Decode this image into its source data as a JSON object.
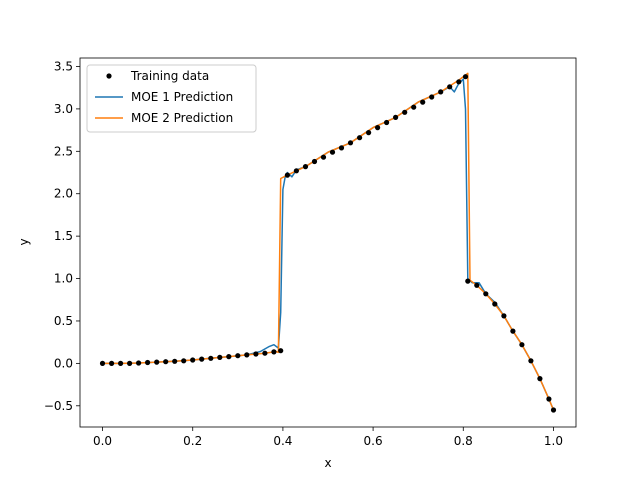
{
  "chart_data": {
    "type": "line",
    "title": "",
    "xlabel": "x",
    "ylabel": "y",
    "xlim": [
      -0.05,
      1.05
    ],
    "ylim": [
      -0.75,
      3.6
    ],
    "xticks": [
      0.0,
      0.2,
      0.4,
      0.6,
      0.8,
      1.0
    ],
    "xtick_labels": [
      "0.0",
      "0.2",
      "0.4",
      "0.6",
      "0.8",
      "1.0"
    ],
    "yticks": [
      -0.5,
      0.0,
      0.5,
      1.0,
      1.5,
      2.0,
      2.5,
      3.0,
      3.5
    ],
    "ytick_labels": [
      "−0.5",
      "0.0",
      "0.5",
      "1.0",
      "1.5",
      "2.0",
      "2.5",
      "3.0",
      "3.5"
    ],
    "grid": false,
    "legend_position": "upper-left",
    "series": [
      {
        "name": "Training data",
        "kind": "points",
        "color": "#000000",
        "x": [
          0.0,
          0.02,
          0.04,
          0.06,
          0.08,
          0.1,
          0.12,
          0.14,
          0.16,
          0.18,
          0.2,
          0.22,
          0.24,
          0.26,
          0.28,
          0.3,
          0.32,
          0.34,
          0.36,
          0.38,
          0.395,
          0.41,
          0.43,
          0.45,
          0.47,
          0.49,
          0.51,
          0.53,
          0.55,
          0.57,
          0.59,
          0.61,
          0.63,
          0.65,
          0.67,
          0.69,
          0.71,
          0.73,
          0.75,
          0.77,
          0.79,
          0.805,
          0.81,
          0.83,
          0.85,
          0.87,
          0.89,
          0.91,
          0.93,
          0.95,
          0.97,
          0.99,
          1.0
        ],
        "y": [
          0.0,
          0.0,
          0.0,
          0.0,
          0.005,
          0.01,
          0.015,
          0.02,
          0.025,
          0.03,
          0.04,
          0.05,
          0.06,
          0.07,
          0.08,
          0.09,
          0.1,
          0.11,
          0.12,
          0.135,
          0.15,
          2.22,
          2.27,
          2.32,
          2.38,
          2.43,
          2.49,
          2.54,
          2.6,
          2.66,
          2.72,
          2.78,
          2.84,
          2.9,
          2.96,
          3.02,
          3.08,
          3.14,
          3.2,
          3.26,
          3.32,
          3.38,
          0.97,
          0.92,
          0.82,
          0.7,
          0.56,
          0.38,
          0.22,
          0.03,
          -0.18,
          -0.42,
          -0.55
        ]
      },
      {
        "name": "MOE 1 Prediction",
        "kind": "line",
        "color": "#1f77b4",
        "x": [
          0.0,
          0.04,
          0.08,
          0.12,
          0.16,
          0.2,
          0.24,
          0.28,
          0.32,
          0.35,
          0.37,
          0.38,
          0.39,
          0.395,
          0.4,
          0.405,
          0.41,
          0.42,
          0.43,
          0.45,
          0.5,
          0.55,
          0.6,
          0.65,
          0.7,
          0.75,
          0.77,
          0.78,
          0.79,
          0.8,
          0.805,
          0.81,
          0.82,
          0.835,
          0.85,
          0.87,
          0.89,
          0.91,
          0.93,
          0.95,
          0.97,
          0.99,
          1.0
        ],
        "y": [
          0.0,
          0.0,
          0.005,
          0.015,
          0.025,
          0.04,
          0.06,
          0.08,
          0.1,
          0.14,
          0.2,
          0.22,
          0.18,
          0.6,
          2.05,
          2.2,
          2.25,
          2.2,
          2.28,
          2.32,
          2.49,
          2.6,
          2.78,
          2.9,
          3.08,
          3.2,
          3.26,
          3.2,
          3.3,
          3.35,
          3.0,
          1.0,
          0.95,
          0.95,
          0.82,
          0.72,
          0.56,
          0.38,
          0.22,
          0.03,
          -0.18,
          -0.42,
          -0.55
        ]
      },
      {
        "name": "MOE 2 Prediction",
        "kind": "line",
        "color": "#ff7f0e",
        "x": [
          0.0,
          0.04,
          0.08,
          0.12,
          0.16,
          0.2,
          0.24,
          0.28,
          0.32,
          0.36,
          0.385,
          0.39,
          0.395,
          0.41,
          0.45,
          0.5,
          0.55,
          0.6,
          0.65,
          0.7,
          0.75,
          0.79,
          0.81,
          0.815,
          0.83,
          0.85,
          0.87,
          0.89,
          0.91,
          0.93,
          0.95,
          0.97,
          0.99,
          1.0
        ],
        "y": [
          0.0,
          0.0,
          0.005,
          0.015,
          0.025,
          0.04,
          0.06,
          0.08,
          0.1,
          0.12,
          0.14,
          0.13,
          2.18,
          2.22,
          2.32,
          2.49,
          2.6,
          2.78,
          2.9,
          3.08,
          3.2,
          3.34,
          3.42,
          0.98,
          0.92,
          0.82,
          0.7,
          0.56,
          0.38,
          0.22,
          0.03,
          -0.18,
          -0.42,
          -0.55
        ]
      }
    ]
  }
}
